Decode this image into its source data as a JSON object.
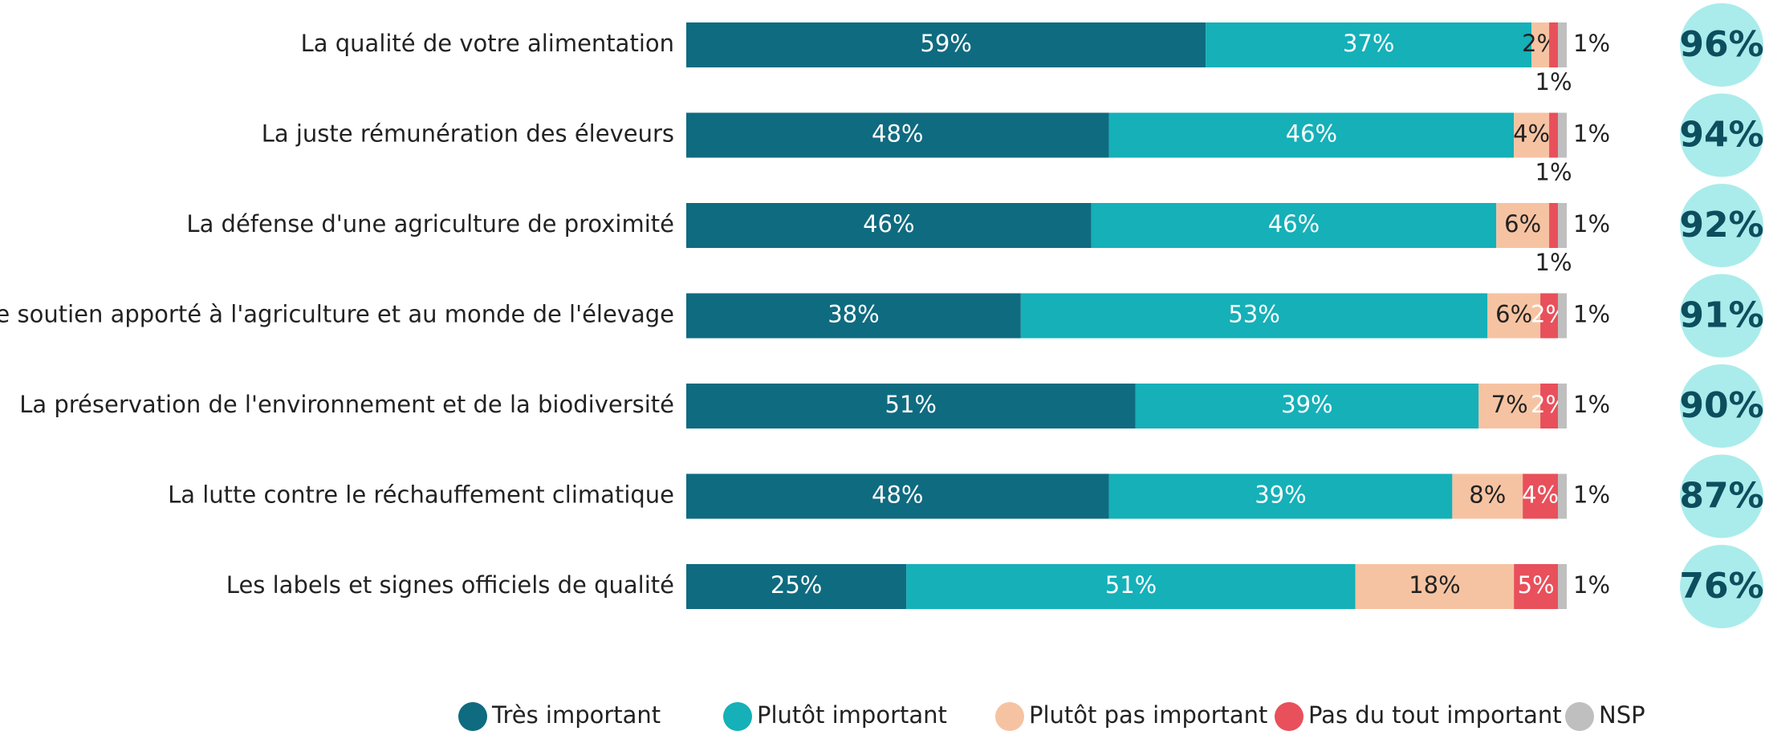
{
  "chart_data": {
    "type": "stacked_bar_horizontal",
    "categories": [
      "La qualité de votre alimentation",
      "La juste rémunération des éleveurs",
      "La défense d'une agriculture de proximité",
      "Le soutien apporté à l'agriculture et au monde de l'élevage",
      "La préservation de l'environnement et de la biodiversité",
      "La lutte contre le réchauffement climatique",
      "Les labels et signes officiels de qualité"
    ],
    "xlim": [
      0,
      100
    ],
    "series": [
      {
        "name": "Très important",
        "color": "#0f6b80",
        "values": [
          59,
          48,
          46,
          38,
          51,
          48,
          25
        ],
        "value_labels": [
          "59%",
          "48%",
          "46%",
          "38%",
          "51%",
          "48%",
          "25%"
        ]
      },
      {
        "name": "Plutôt important",
        "color": "#15b0b8",
        "values": [
          37,
          46,
          46,
          53,
          39,
          39,
          51
        ],
        "value_labels": [
          "37%",
          "46%",
          "46%",
          "53%",
          "39%",
          "39%",
          "51%"
        ]
      },
      {
        "name": "Plutôt pas important",
        "color": "#f6c3a2",
        "values": [
          2,
          4,
          6,
          6,
          7,
          8,
          18
        ],
        "value_labels": [
          "2%",
          "4%",
          "6%",
          "6%",
          "7%",
          "8%",
          "18%"
        ]
      },
      {
        "name": "Pas du tout important",
        "color": "#e8505b",
        "values": [
          1,
          1,
          1,
          2,
          2,
          4,
          5
        ],
        "value_labels": [
          "1%",
          "1%",
          "1%",
          "2%",
          "2%",
          "4%",
          "5%"
        ]
      },
      {
        "name": "NSP",
        "color": "#bfbfbf",
        "values": [
          1,
          1,
          1,
          1,
          1,
          1,
          1
        ],
        "value_labels": [
          "1%",
          "1%",
          "1%",
          "1%",
          "1%",
          "1%",
          "1%"
        ]
      }
    ],
    "totals": {
      "color": "#aaeceb",
      "values": [
        96,
        94,
        92,
        91,
        90,
        87,
        76
      ],
      "value_labels": [
        "96%",
        "94%",
        "92%",
        "91%",
        "90%",
        "87%",
        "76%"
      ]
    }
  }
}
